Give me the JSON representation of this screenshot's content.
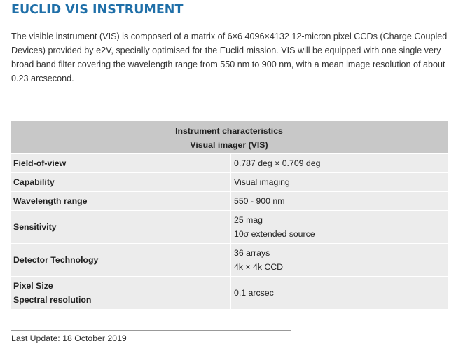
{
  "title": "EUCLID VIS INSTRUMENT",
  "intro": "The visible instrument (VIS) is composed of a matrix of 6×6 4096×4132 12-micron pixel CCDs (Charge Coupled Devices) provided by e2V, specially optimised for the Euclid mission. VIS will be equipped with one single very broad band filter covering the wavelength range from 550 nm to 900 nm, with a mean image resolution of about 0.23 arcsecond.",
  "table": {
    "header": [
      "Instrument characteristics",
      "Visual imager (VIS)"
    ],
    "rows": [
      {
        "label": [
          "Field-of-view"
        ],
        "value": [
          "0.787 deg × 0.709 deg"
        ]
      },
      {
        "label": [
          "Capability"
        ],
        "value": [
          "Visual imaging"
        ]
      },
      {
        "label": [
          "Wavelength range"
        ],
        "value": [
          "550 - 900 nm"
        ]
      },
      {
        "label": [
          "Sensitivity"
        ],
        "value": [
          "25 mag",
          "10σ extended source"
        ]
      },
      {
        "label": [
          "Detector Technology"
        ],
        "value": [
          "36 arrays",
          "4k × 4k CCD"
        ]
      },
      {
        "label": [
          "Pixel Size",
          "Spectral resolution"
        ],
        "value": [
          "0.1 arcsec"
        ]
      }
    ]
  },
  "footer": {
    "last_update": "Last Update: 18 October 2019"
  }
}
